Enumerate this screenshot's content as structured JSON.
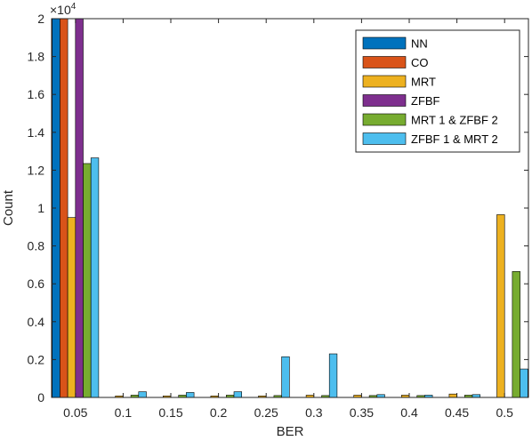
{
  "chart_data": {
    "type": "bar",
    "xlabel": "BER",
    "ylabel": "Count",
    "scale_label": "×10",
    "scale_exponent": "4",
    "ylim": [
      0,
      20000
    ],
    "yticks": [
      0,
      2000,
      4000,
      6000,
      8000,
      10000,
      12000,
      14000,
      16000,
      18000,
      20000
    ],
    "ytick_labels": [
      "0",
      "0.2",
      "0.4",
      "0.6",
      "0.8",
      "1",
      "1.2",
      "1.4",
      "1.6",
      "1.8",
      "2"
    ],
    "categories": [
      "0.05",
      "0.1",
      "0.15",
      "0.2",
      "0.25",
      "0.3",
      "0.35",
      "0.4",
      "0.45",
      "0.5"
    ],
    "legend_position": "top-right",
    "grid": false,
    "series": [
      {
        "name": "NN",
        "color": "#0072BD",
        "values": [
          20000,
          0,
          0,
          0,
          0,
          0,
          0,
          0,
          0,
          0
        ]
      },
      {
        "name": "CO",
        "color": "#D95319",
        "values": [
          20000,
          0,
          0,
          0,
          0,
          0,
          0,
          0,
          0,
          0
        ]
      },
      {
        "name": "MRT",
        "color": "#EDB120",
        "values": [
          9500,
          80,
          80,
          80,
          80,
          120,
          120,
          120,
          180,
          9650
        ]
      },
      {
        "name": "ZFBF",
        "color": "#7E2F8E",
        "values": [
          20000,
          0,
          0,
          0,
          0,
          0,
          0,
          0,
          0,
          0
        ]
      },
      {
        "name": "MRT 1 & ZFBF 2",
        "color": "#77AC30",
        "values": [
          12350,
          120,
          120,
          120,
          100,
          100,
          100,
          100,
          120,
          6650
        ]
      },
      {
        "name": "ZFBF 1 & MRT 2",
        "color": "#4DBEEE",
        "values": [
          12650,
          300,
          260,
          300,
          2150,
          2300,
          150,
          120,
          150,
          1500
        ]
      }
    ]
  }
}
